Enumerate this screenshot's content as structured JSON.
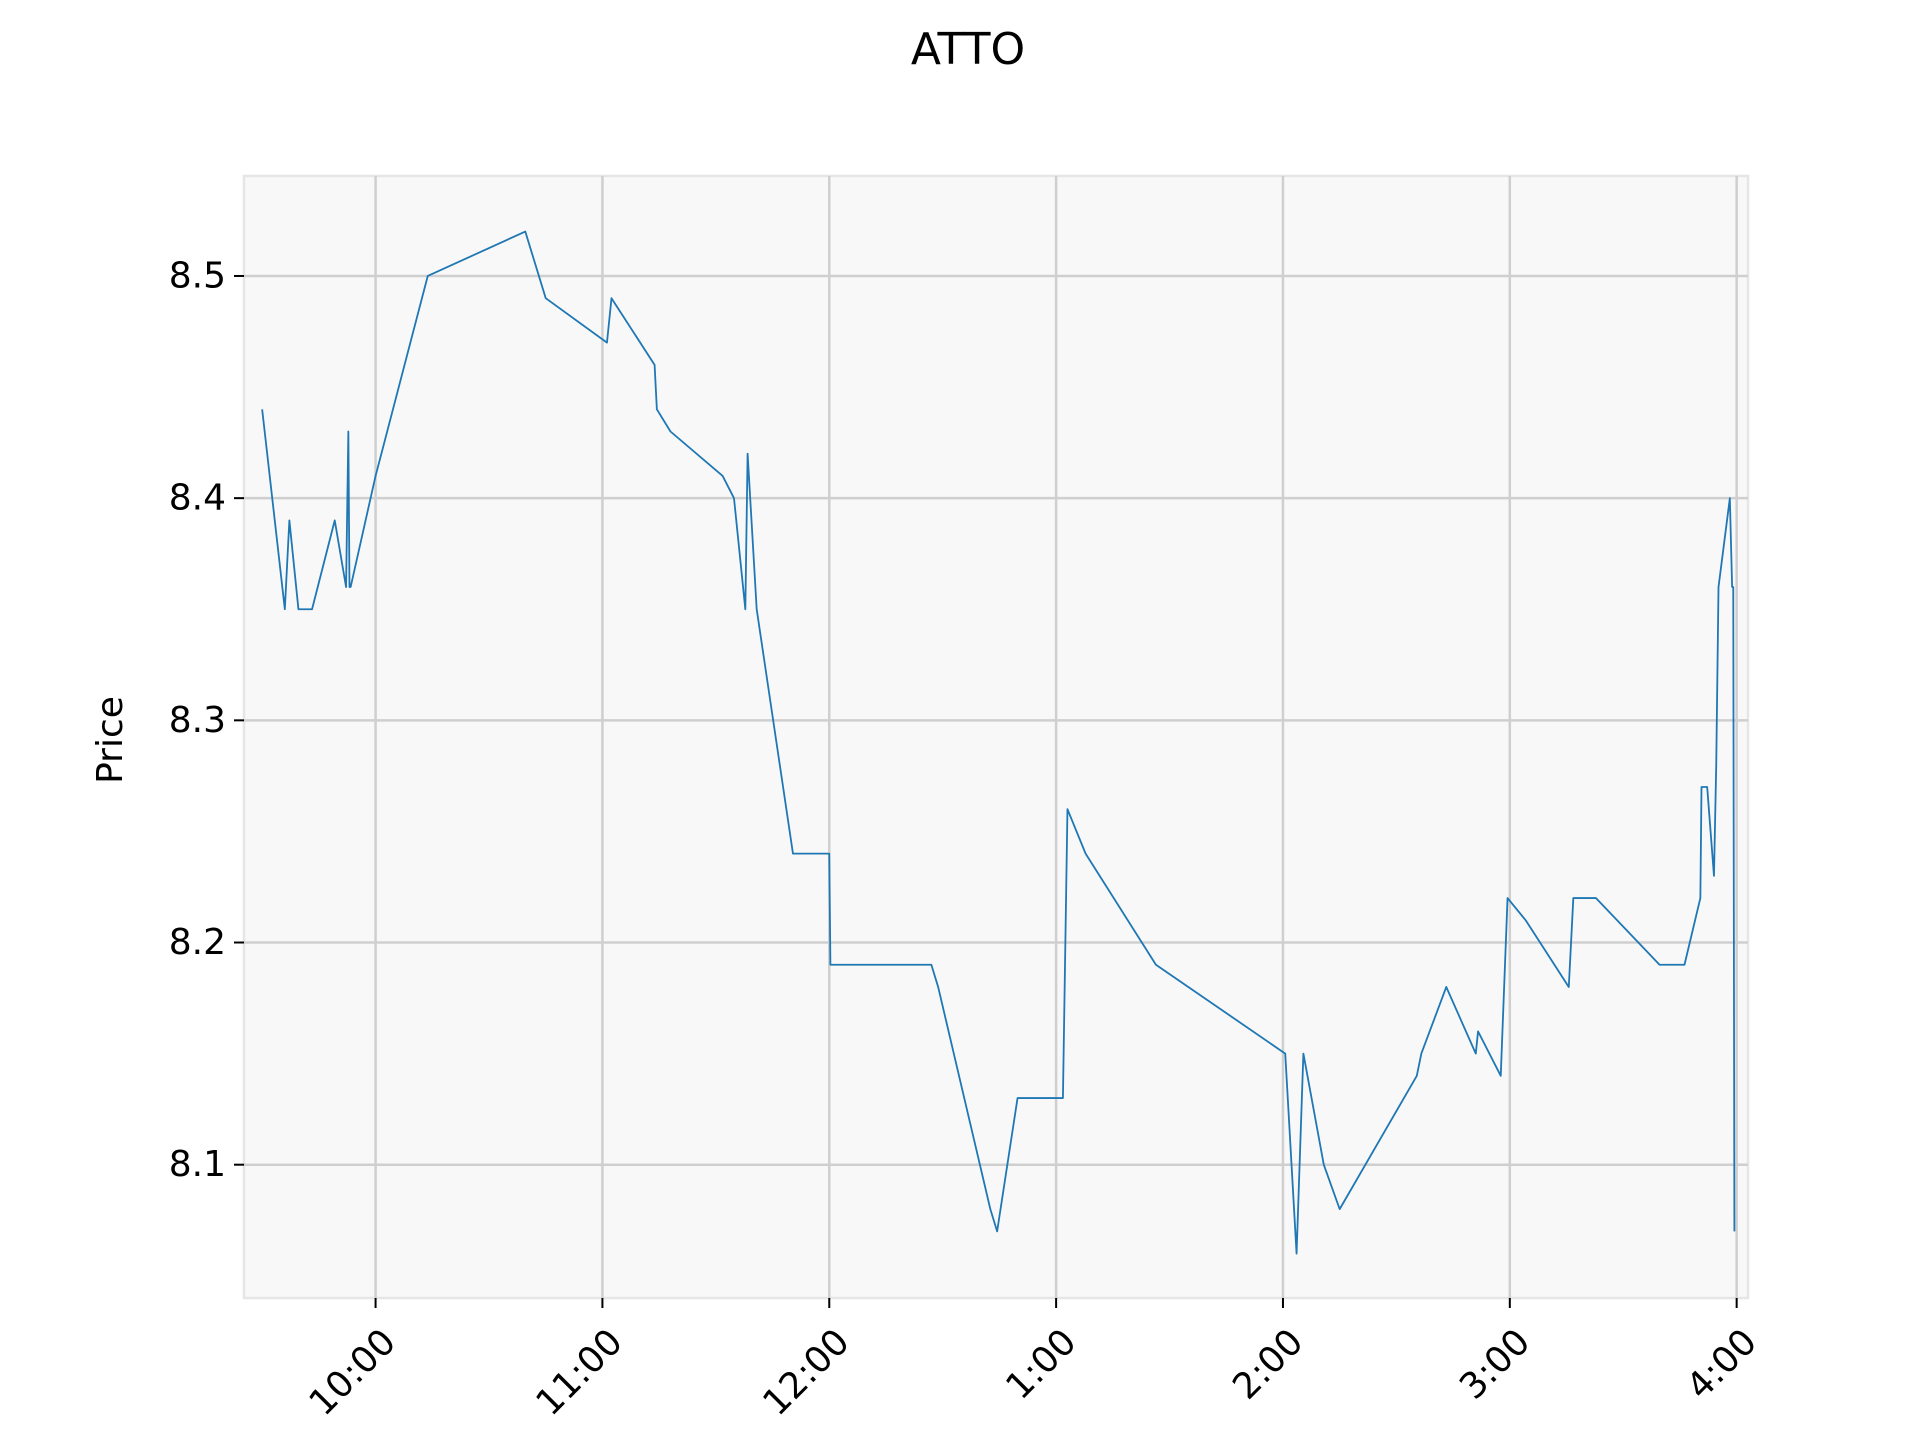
{
  "chart_data": {
    "type": "line",
    "title": "ATTO",
    "xlabel": "",
    "ylabel": "Price",
    "xlim": [
      9.42,
      16.05
    ],
    "ylim": [
      8.04,
      8.545
    ],
    "grid": true,
    "x_ticks": [
      {
        "value": 10,
        "label": "10:00"
      },
      {
        "value": 11,
        "label": "11:00"
      },
      {
        "value": 12,
        "label": "12:00"
      },
      {
        "value": 13,
        "label": "1:00"
      },
      {
        "value": 14,
        "label": "2:00"
      },
      {
        "value": 15,
        "label": "3:00"
      },
      {
        "value": 16,
        "label": "4:00"
      }
    ],
    "y_ticks": [
      {
        "value": 8.1,
        "label": "8.1"
      },
      {
        "value": 8.2,
        "label": "8.2"
      },
      {
        "value": 8.3,
        "label": "8.3"
      },
      {
        "value": 8.4,
        "label": "8.4"
      },
      {
        "value": 8.5,
        "label": "8.5"
      }
    ],
    "series": [
      {
        "name": "",
        "color": "#1f77b4",
        "points": [
          [
            9.5,
            8.44
          ],
          [
            9.6,
            8.35
          ],
          [
            9.62,
            8.39
          ],
          [
            9.66,
            8.35
          ],
          [
            9.72,
            8.35
          ],
          [
            9.82,
            8.39
          ],
          [
            9.87,
            8.36
          ],
          [
            9.88,
            8.43
          ],
          [
            9.885,
            8.36
          ],
          [
            9.89,
            8.36
          ],
          [
            10.0,
            8.41
          ],
          [
            10.23,
            8.5
          ],
          [
            10.66,
            8.52
          ],
          [
            10.75,
            8.49
          ],
          [
            11.02,
            8.47
          ],
          [
            11.04,
            8.49
          ],
          [
            11.23,
            8.46
          ],
          [
            11.24,
            8.44
          ],
          [
            11.3,
            8.43
          ],
          [
            11.53,
            8.41
          ],
          [
            11.58,
            8.4
          ],
          [
            11.63,
            8.35
          ],
          [
            11.64,
            8.42
          ],
          [
            11.68,
            8.35
          ],
          [
            11.84,
            8.24
          ],
          [
            12.0,
            8.24
          ],
          [
            12.005,
            8.19
          ],
          [
            12.45,
            8.19
          ],
          [
            12.48,
            8.18
          ],
          [
            12.71,
            8.08
          ],
          [
            12.74,
            8.07
          ],
          [
            12.83,
            8.13
          ],
          [
            13.03,
            8.13
          ],
          [
            13.05,
            8.26
          ],
          [
            13.13,
            8.24
          ],
          [
            13.44,
            8.19
          ],
          [
            14.01,
            8.15
          ],
          [
            14.06,
            8.06
          ],
          [
            14.09,
            8.15
          ],
          [
            14.18,
            8.1
          ],
          [
            14.25,
            8.08
          ],
          [
            14.59,
            8.14
          ],
          [
            14.61,
            8.15
          ],
          [
            14.72,
            8.18
          ],
          [
            14.85,
            8.15
          ],
          [
            14.86,
            8.16
          ],
          [
            14.96,
            8.14
          ],
          [
            14.99,
            8.22
          ],
          [
            15.07,
            8.21
          ],
          [
            15.26,
            8.18
          ],
          [
            15.28,
            8.22
          ],
          [
            15.38,
            8.22
          ],
          [
            15.66,
            8.19
          ],
          [
            15.77,
            8.19
          ],
          [
            15.84,
            8.22
          ],
          [
            15.845,
            8.27
          ],
          [
            15.87,
            8.27
          ],
          [
            15.9,
            8.23
          ],
          [
            15.91,
            8.28
          ],
          [
            15.92,
            8.36
          ],
          [
            15.97,
            8.4
          ],
          [
            15.98,
            8.36
          ],
          [
            15.985,
            8.36
          ],
          [
            15.99,
            8.07
          ]
        ]
      }
    ]
  }
}
